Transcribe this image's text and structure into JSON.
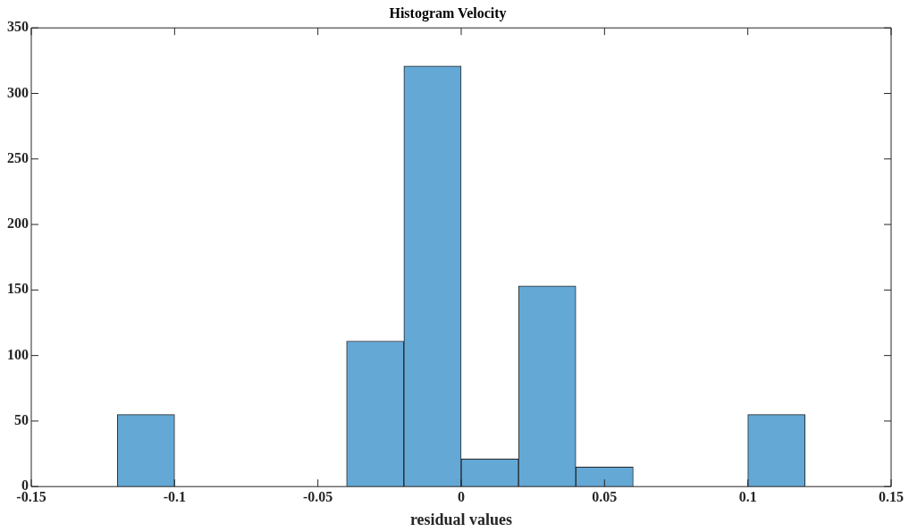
{
  "chart_data": {
    "type": "histogram",
    "title": "Histogram Velocity",
    "xlabel": "residual values",
    "bins": [
      -0.12,
      -0.1,
      -0.08,
      -0.06,
      -0.04,
      -0.02,
      0,
      0.02,
      0.04,
      0.06,
      0.08,
      0.1,
      0.12
    ],
    "values": [
      55,
      0,
      0,
      0,
      111,
      321,
      21,
      153,
      15,
      0,
      0,
      55
    ],
    "color": "#64a8d6",
    "xlim": [
      -0.15,
      0.15
    ],
    "xticks": [
      -0.15,
      -0.1,
      -0.05,
      0,
      0.05,
      0.1,
      0.15
    ],
    "ylim": [
      0,
      350
    ],
    "yticks": [
      0,
      50,
      100,
      150,
      200,
      250,
      300,
      350
    ],
    "grid": false
  }
}
